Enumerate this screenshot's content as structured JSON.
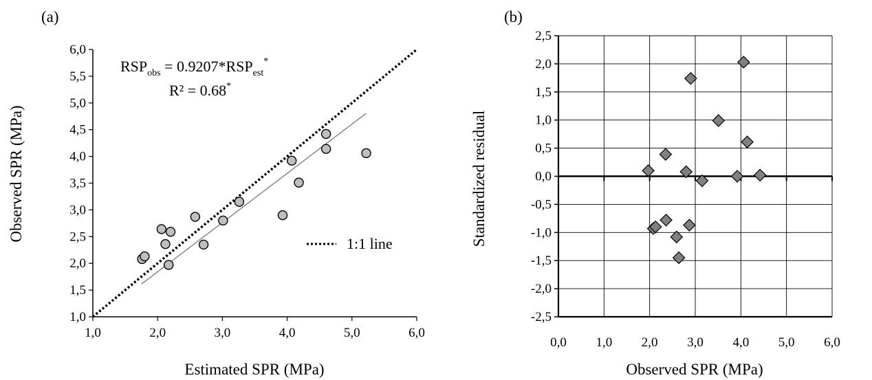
{
  "chart_data": [
    {
      "panel_label": "(a)",
      "type": "scatter",
      "xlabel": "Estimated SPR (MPa)",
      "ylabel": "Observed SPR (MPa)",
      "xlim": [
        1.0,
        6.0
      ],
      "ylim": [
        1.0,
        6.0
      ],
      "x_ticks": [
        "1,0",
        "2,0",
        "3,0",
        "4,0",
        "5,0",
        "6,0"
      ],
      "x_tick_values": [
        1,
        2,
        3,
        4,
        5,
        6
      ],
      "y_ticks": [
        "1,0",
        "1,5",
        "2,0",
        "2,5",
        "3,0",
        "3,5",
        "4,0",
        "4,5",
        "5,0",
        "5,5",
        "6,0"
      ],
      "y_tick_values": [
        1,
        1.5,
        2,
        2.5,
        3,
        3.5,
        4,
        4.5,
        5,
        5.5,
        6
      ],
      "grid": false,
      "equation": {
        "line1_base": "RSP",
        "line1_sub1": "obs",
        "line1_mid": " = 0.9207*RSP",
        "line1_sub2": "est",
        "line1_sup": "*",
        "line2_base": "R² = 0.68",
        "line2_sup": "*"
      },
      "legend": {
        "label": "1:1 line",
        "placement": "right"
      },
      "marker_color": "#bfbfbf",
      "fit_line": {
        "slope": 0.9207,
        "x_range": [
          1.75,
          5.22
        ],
        "color": "#808080"
      },
      "identity_line": {
        "from": [
          1.0,
          1.0
        ],
        "to": [
          6.0,
          6.0
        ],
        "style": "dotted"
      },
      "points": [
        {
          "x": 1.76,
          "y": 2.08
        },
        {
          "x": 1.8,
          "y": 2.13
        },
        {
          "x": 2.06,
          "y": 2.64
        },
        {
          "x": 2.12,
          "y": 2.36
        },
        {
          "x": 2.17,
          "y": 1.97
        },
        {
          "x": 2.2,
          "y": 2.59
        },
        {
          "x": 2.58,
          "y": 2.87
        },
        {
          "x": 2.71,
          "y": 2.35
        },
        {
          "x": 3.01,
          "y": 2.8
        },
        {
          "x": 3.26,
          "y": 3.15
        },
        {
          "x": 3.93,
          "y": 2.9
        },
        {
          "x": 4.07,
          "y": 3.92
        },
        {
          "x": 4.18,
          "y": 3.51
        },
        {
          "x": 4.6,
          "y": 4.42
        },
        {
          "x": 4.6,
          "y": 4.14
        },
        {
          "x": 5.22,
          "y": 4.06
        }
      ]
    },
    {
      "panel_label": "(b)",
      "type": "scatter",
      "xlabel": "Observed SPR (MPa)",
      "ylabel": "Standardized residual",
      "xlim": [
        0.0,
        6.0
      ],
      "ylim": [
        -2.5,
        2.5
      ],
      "x_ticks": [
        "0,0",
        "1,0",
        "2,0",
        "3,0",
        "4,0",
        "5,0",
        "6,0"
      ],
      "x_tick_values": [
        0,
        1,
        2,
        3,
        4,
        5,
        6
      ],
      "y_ticks": [
        "-2,5",
        "-2,0",
        "-1,5",
        "-1,0",
        "-0,5",
        "0,0",
        "0,5",
        "1,0",
        "1,5",
        "2,0",
        "2,5"
      ],
      "y_tick_values": [
        -2.5,
        -2,
        -1.5,
        -1,
        -0.5,
        0,
        0.5,
        1,
        1.5,
        2,
        2.5
      ],
      "grid": true,
      "marker_color": "#808080",
      "points": [
        {
          "x": 1.97,
          "y": 0.1
        },
        {
          "x": 2.08,
          "y": -0.93
        },
        {
          "x": 2.13,
          "y": -0.9
        },
        {
          "x": 2.36,
          "y": -0.78
        },
        {
          "x": 2.35,
          "y": 0.39
        },
        {
          "x": 2.59,
          "y": -1.08
        },
        {
          "x": 2.64,
          "y": -1.45
        },
        {
          "x": 2.8,
          "y": 0.08
        },
        {
          "x": 2.87,
          "y": -0.87
        },
        {
          "x": 2.9,
          "y": 1.74
        },
        {
          "x": 3.15,
          "y": -0.08
        },
        {
          "x": 3.51,
          "y": 0.99
        },
        {
          "x": 3.92,
          "y": 0.0
        },
        {
          "x": 4.06,
          "y": 2.03
        },
        {
          "x": 4.14,
          "y": 0.61
        },
        {
          "x": 4.42,
          "y": 0.02
        }
      ]
    }
  ]
}
